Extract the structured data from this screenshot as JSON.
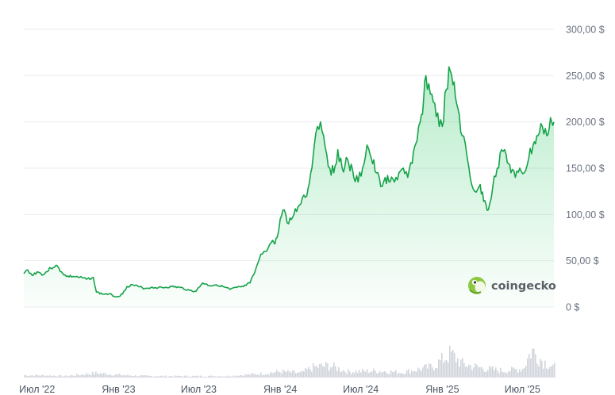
{
  "chart_data": {
    "type": "area",
    "title": "",
    "xlabel": "",
    "ylabel": "",
    "currency": "$",
    "colors": {
      "line": "#16a34a",
      "area_top": "#22c55e",
      "grid": "#eceef1",
      "volume": "#d1d5db",
      "tick_text": "#6b7280",
      "brand_logo": "#8dc63f"
    },
    "grid": true,
    "y_axis_position": "right",
    "ylim": [
      0,
      300
    ],
    "y_ticks": [
      {
        "value": 0,
        "label": "0 $"
      },
      {
        "value": 50,
        "label": "50,00 $"
      },
      {
        "value": 100,
        "label": "100,00 $"
      },
      {
        "value": 150,
        "label": "150,00 $"
      },
      {
        "value": 200,
        "label": "200,00 $"
      },
      {
        "value": 250,
        "label": "250,00 $"
      },
      {
        "value": 300,
        "label": "300,00 $"
      }
    ],
    "x_range": [
      "2022-06-01",
      "2025-09-10"
    ],
    "x_ticks": [
      {
        "date": "2022-07-01",
        "label": "Июл '22"
      },
      {
        "date": "2023-01-01",
        "label": "Янв '23"
      },
      {
        "date": "2023-07-01",
        "label": "Июл '23"
      },
      {
        "date": "2024-01-01",
        "label": "Янв '24"
      },
      {
        "date": "2024-07-01",
        "label": "Июл '24"
      },
      {
        "date": "2025-01-01",
        "label": "Янв '25"
      },
      {
        "date": "2025-07-01",
        "label": "Июл '25"
      }
    ],
    "series": [
      {
        "type": "area",
        "x": [
          "2022-06-01",
          "2022-06-10",
          "2022-06-20",
          "2022-07-01",
          "2022-07-15",
          "2022-08-01",
          "2022-08-12",
          "2022-08-25",
          "2022-09-05",
          "2022-09-20",
          "2022-10-05",
          "2022-10-20",
          "2022-11-05",
          "2022-11-08",
          "2022-11-12",
          "2022-11-25",
          "2022-12-10",
          "2022-12-28",
          "2023-01-10",
          "2023-01-20",
          "2023-02-01",
          "2023-02-15",
          "2023-03-01",
          "2023-03-15",
          "2023-04-01",
          "2023-04-15",
          "2023-05-01",
          "2023-05-20",
          "2023-06-10",
          "2023-06-25",
          "2023-07-10",
          "2023-07-25",
          "2023-08-10",
          "2023-08-25",
          "2023-09-10",
          "2023-09-25",
          "2023-10-10",
          "2023-10-25",
          "2023-11-05",
          "2023-11-15",
          "2023-11-25",
          "2023-12-05",
          "2023-12-15",
          "2023-12-20",
          "2023-12-25",
          "2024-01-01",
          "2024-01-10",
          "2024-01-20",
          "2024-02-01",
          "2024-02-10",
          "2024-02-20",
          "2024-03-01",
          "2024-03-10",
          "2024-03-18",
          "2024-03-25",
          "2024-04-01",
          "2024-04-08",
          "2024-04-15",
          "2024-04-22",
          "2024-05-01",
          "2024-05-10",
          "2024-05-20",
          "2024-06-01",
          "2024-06-15",
          "2024-06-25",
          "2024-07-05",
          "2024-07-15",
          "2024-07-25",
          "2024-08-05",
          "2024-08-15",
          "2024-08-25",
          "2024-09-05",
          "2024-09-15",
          "2024-09-25",
          "2024-10-05",
          "2024-10-15",
          "2024-10-25",
          "2024-11-05",
          "2024-11-12",
          "2024-11-20",
          "2024-11-25",
          "2024-12-05",
          "2024-12-15",
          "2024-12-25",
          "2025-01-01",
          "2025-01-10",
          "2025-01-19",
          "2025-01-25",
          "2025-02-05",
          "2025-02-15",
          "2025-02-25",
          "2025-03-05",
          "2025-03-15",
          "2025-03-25",
          "2025-04-07",
          "2025-04-15",
          "2025-04-25",
          "2025-05-05",
          "2025-05-15",
          "2025-05-25",
          "2025-06-05",
          "2025-06-15",
          "2025-06-25",
          "2025-07-05",
          "2025-07-15",
          "2025-07-25",
          "2025-08-05",
          "2025-08-15",
          "2025-08-25",
          "2025-09-05",
          "2025-09-10"
        ],
        "y": [
          36,
          40,
          34,
          38,
          35,
          42,
          45,
          38,
          33,
          33,
          32,
          30,
          32,
          24,
          16,
          14,
          14,
          11,
          14,
          22,
          24,
          22,
          20,
          21,
          21,
          21,
          22,
          21,
          18,
          17,
          26,
          23,
          24,
          22,
          19,
          21,
          22,
          26,
          38,
          52,
          60,
          64,
          72,
          68,
          75,
          95,
          105,
          90,
          100,
          108,
          118,
          120,
          145,
          175,
          195,
          200,
          185,
          165,
          150,
          145,
          170,
          150,
          160,
          140,
          135,
          150,
          175,
          160,
          145,
          130,
          140,
          135,
          135,
          145,
          150,
          140,
          155,
          180,
          200,
          225,
          250,
          230,
          220,
          195,
          195,
          235,
          255,
          240,
          215,
          185,
          165,
          140,
          125,
          130,
          115,
          105,
          130,
          150,
          170,
          165,
          145,
          140,
          150,
          145,
          160,
          175,
          185,
          195,
          185,
          200,
          200
        ]
      }
    ],
    "volume": {
      "x": [
        "2022-06-01",
        "2022-07-15",
        "2022-09-01",
        "2022-11-10",
        "2023-01-15",
        "2023-03-10",
        "2023-05-01",
        "2023-07-01",
        "2023-09-01",
        "2023-11-15",
        "2024-01-01",
        "2024-02-15",
        "2024-03-15",
        "2024-04-20",
        "2024-06-01",
        "2024-08-05",
        "2024-10-01",
        "2024-11-15",
        "2024-12-10",
        "2025-01-19",
        "2025-02-15",
        "2025-04-07",
        "2025-05-20",
        "2025-07-01",
        "2025-07-20",
        "2025-08-15",
        "2025-09-10"
      ],
      "y": [
        3,
        3,
        2,
        6,
        3,
        2,
        2,
        2,
        2,
        5,
        8,
        6,
        14,
        16,
        8,
        9,
        7,
        12,
        15,
        32,
        18,
        12,
        9,
        12,
        37,
        22,
        14
      ]
    },
    "watermark": "coingecko"
  }
}
